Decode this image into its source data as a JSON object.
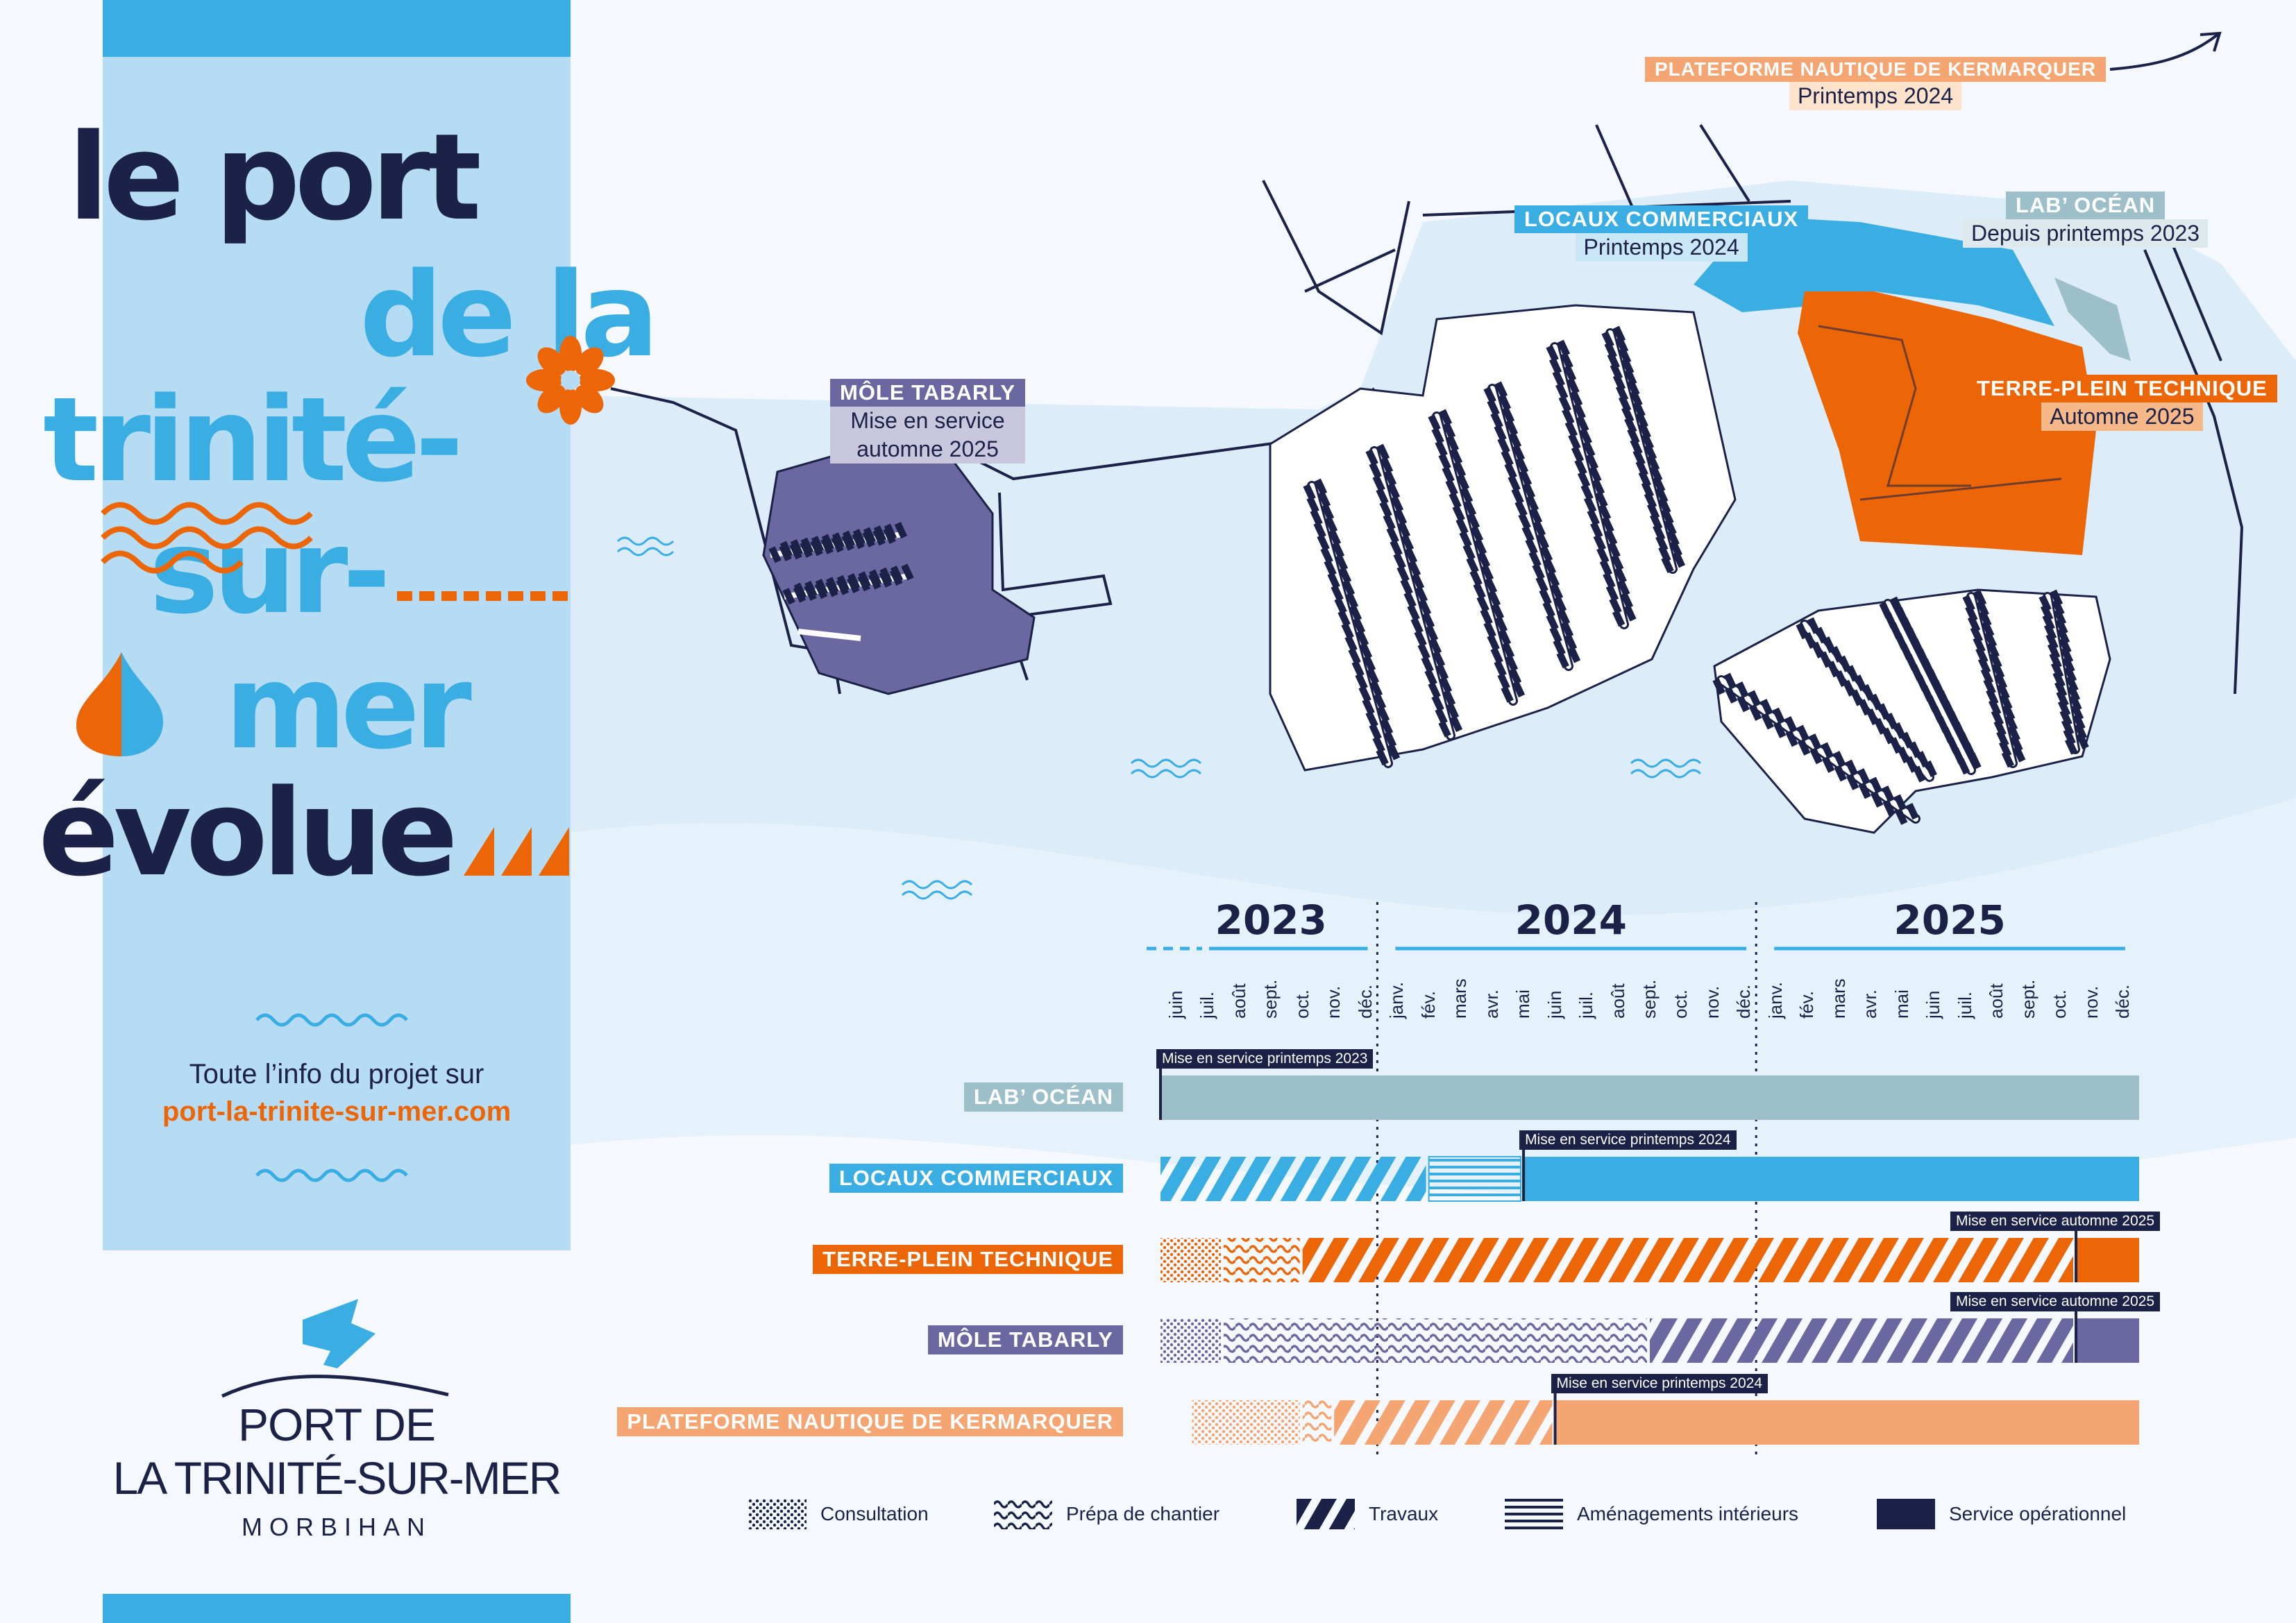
{
  "title": {
    "line1": "le port",
    "line2": "de la",
    "line3": "trinité-",
    "line4": "sur-",
    "line5": "mer",
    "line6": "évolue"
  },
  "info": {
    "text": "Toute l’info du projet sur",
    "url": "port-la-trinite-sur-mer.com"
  },
  "logo": {
    "line1": "PORT DE",
    "line2": "LA TRINITÉ-SUR-MER",
    "line3": "MORBIHAN"
  },
  "map_labels": {
    "kermarquer": {
      "name": "PLATEFORME NAUTIQUE DE KERMARQUER",
      "date": "Printemps 2024"
    },
    "locaux": {
      "name": "LOCAUX COMMERCIAUX",
      "date": "Printemps 2024"
    },
    "labocean": {
      "name": "LAB’ OCÉAN",
      "date": "Depuis printemps 2023"
    },
    "terreplein": {
      "name": "TERRE-PLEIN TECHNIQUE",
      "date": "Automne 2025"
    },
    "mole": {
      "name": "MÔLE TABARLY",
      "date1": "Mise en service",
      "date2": "automne 2025"
    }
  },
  "colors": {
    "navy": "#1b2147",
    "blue": "#3aaee3",
    "orange": "#ec6608",
    "purple": "#6b67a0",
    "grayblue": "#9dbfc9",
    "peach": "#f4a571",
    "panel": "#b5dcf3",
    "water": "#dcedf9"
  },
  "timeline": {
    "years": [
      "2023",
      "2024",
      "2025"
    ],
    "months": [
      "juin",
      "juil.",
      "août",
      "sept.",
      "oct.",
      "nov.",
      "déc.",
      "janv.",
      "fév.",
      "mars",
      "avr.",
      "mai",
      "juin",
      "juil.",
      "août",
      "sept.",
      "oct.",
      "nov.",
      "déc.",
      "janv.",
      "fév.",
      "mars",
      "avr.",
      "mai",
      "juin",
      "juil.",
      "août",
      "sept.",
      "oct.",
      "nov.",
      "déc."
    ],
    "rows": [
      {
        "name": "LAB’ OCÉAN",
        "color": "#9dbfc9",
        "milestone": "Mise en service printemps 2023",
        "milestone_month": 0,
        "segments": [
          {
            "phase": "service",
            "start": 0,
            "end": 31
          }
        ]
      },
      {
        "name": "LOCAUX COMMERCIAUX",
        "color": "#3aaee3",
        "milestone": "Mise en service printemps 2024",
        "milestone_month": 11.5,
        "segments": [
          {
            "phase": "travaux",
            "start": 0,
            "end": 8.5
          },
          {
            "phase": "amenagements",
            "start": 8.5,
            "end": 11.5
          },
          {
            "phase": "service",
            "start": 11.5,
            "end": 31
          }
        ]
      },
      {
        "name": "TERRE-PLEIN TECHNIQUE",
        "color": "#ec6608",
        "milestone": "Mise en service automne 2025",
        "milestone_month": 29,
        "segments": [
          {
            "phase": "consultation",
            "start": 0,
            "end": 2
          },
          {
            "phase": "prepa",
            "start": 2,
            "end": 4.5
          },
          {
            "phase": "travaux",
            "start": 4.5,
            "end": 29
          },
          {
            "phase": "service",
            "start": 29,
            "end": 31
          }
        ]
      },
      {
        "name": "MÔLE TABARLY",
        "color": "#6b67a0",
        "milestone": "Mise en service automne 2025",
        "milestone_month": 29,
        "segments": [
          {
            "phase": "consultation",
            "start": 0,
            "end": 2
          },
          {
            "phase": "prepa",
            "start": 2,
            "end": 15.5
          },
          {
            "phase": "travaux",
            "start": 15.5,
            "end": 29
          },
          {
            "phase": "service",
            "start": 29,
            "end": 31
          }
        ]
      },
      {
        "name": "PLATEFORME NAUTIQUE DE KERMARQUER",
        "color": "#f4a571",
        "milestone": "Mise en service printemps 2024",
        "milestone_month": 12.5,
        "segments": [
          {
            "phase": "consultation",
            "start": 1,
            "end": 4.5
          },
          {
            "phase": "prepa",
            "start": 4.5,
            "end": 5.5
          },
          {
            "phase": "travaux",
            "start": 5.5,
            "end": 12.5
          },
          {
            "phase": "service",
            "start": 12.5,
            "end": 31
          }
        ]
      }
    ],
    "legend": [
      {
        "phase": "consultation",
        "label": "Consultation"
      },
      {
        "phase": "prepa",
        "label": "Prépa de chantier"
      },
      {
        "phase": "travaux",
        "label": "Travaux"
      },
      {
        "phase": "amenagements",
        "label": "Aménagements intérieurs"
      },
      {
        "phase": "service",
        "label": "Service opérationnel"
      }
    ]
  }
}
